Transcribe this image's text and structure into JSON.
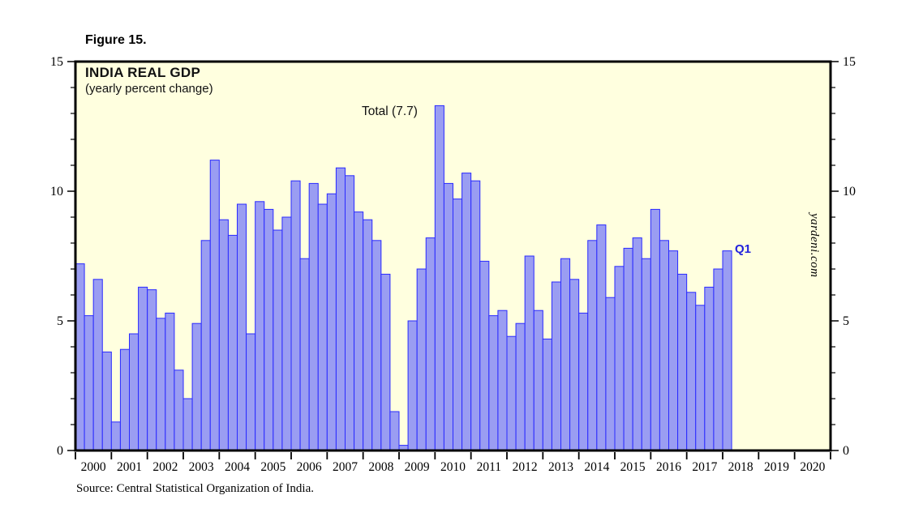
{
  "figure_label": "Figure 15.",
  "source_note": "Source: Central Statistical Organization of India.",
  "chart_data": {
    "type": "bar",
    "title": "INDIA REAL GDP",
    "subtitle": "(yearly percent change)",
    "annotation": "Total (7.7)",
    "last_bar_label": "Q1",
    "watermark": "yardeni.com",
    "ylim": [
      0,
      15
    ],
    "y_major_ticks": [
      0,
      5,
      10,
      15
    ],
    "y_minor_step": 1,
    "axis_years": [
      2000,
      2001,
      2002,
      2003,
      2004,
      2005,
      2006,
      2007,
      2008,
      2009,
      2010,
      2011,
      2012,
      2013,
      2014,
      2015,
      2016,
      2017,
      2018,
      2019,
      2020
    ],
    "quarters": [
      {
        "q": "2000 Q1",
        "v": 7.2
      },
      {
        "q": "2000 Q2",
        "v": 5.2
      },
      {
        "q": "2000 Q3",
        "v": 6.6
      },
      {
        "q": "2000 Q4",
        "v": 3.8
      },
      {
        "q": "2001 Q1",
        "v": 1.1
      },
      {
        "q": "2001 Q2",
        "v": 3.9
      },
      {
        "q": "2001 Q3",
        "v": 4.5
      },
      {
        "q": "2001 Q4",
        "v": 6.3
      },
      {
        "q": "2002 Q1",
        "v": 6.2
      },
      {
        "q": "2002 Q2",
        "v": 5.1
      },
      {
        "q": "2002 Q3",
        "v": 5.3
      },
      {
        "q": "2002 Q4",
        "v": 3.1
      },
      {
        "q": "2003 Q1",
        "v": 2.0
      },
      {
        "q": "2003 Q2",
        "v": 4.9
      },
      {
        "q": "2003 Q3",
        "v": 8.1
      },
      {
        "q": "2003 Q4",
        "v": 11.2
      },
      {
        "q": "2004 Q1",
        "v": 8.9
      },
      {
        "q": "2004 Q2",
        "v": 8.3
      },
      {
        "q": "2004 Q3",
        "v": 9.5
      },
      {
        "q": "2004 Q4",
        "v": 4.5
      },
      {
        "q": "2005 Q1",
        "v": 9.6
      },
      {
        "q": "2005 Q2",
        "v": 9.3
      },
      {
        "q": "2005 Q3",
        "v": 8.5
      },
      {
        "q": "2005 Q4",
        "v": 9.0
      },
      {
        "q": "2006 Q1",
        "v": 10.4
      },
      {
        "q": "2006 Q2",
        "v": 7.4
      },
      {
        "q": "2006 Q3",
        "v": 10.3
      },
      {
        "q": "2006 Q4",
        "v": 9.5
      },
      {
        "q": "2007 Q1",
        "v": 9.9
      },
      {
        "q": "2007 Q2",
        "v": 10.9
      },
      {
        "q": "2007 Q3",
        "v": 10.6
      },
      {
        "q": "2007 Q4",
        "v": 9.2
      },
      {
        "q": "2008 Q1",
        "v": 8.9
      },
      {
        "q": "2008 Q2",
        "v": 8.1
      },
      {
        "q": "2008 Q3",
        "v": 6.8
      },
      {
        "q": "2008 Q4",
        "v": 1.5
      },
      {
        "q": "2009 Q1",
        "v": 0.2
      },
      {
        "q": "2009 Q2",
        "v": 5.0
      },
      {
        "q": "2009 Q3",
        "v": 7.0
      },
      {
        "q": "2009 Q4",
        "v": 8.2
      },
      {
        "q": "2010 Q1",
        "v": 13.3
      },
      {
        "q": "2010 Q2",
        "v": 10.3
      },
      {
        "q": "2010 Q3",
        "v": 9.7
      },
      {
        "q": "2010 Q4",
        "v": 10.7
      },
      {
        "q": "2011 Q1",
        "v": 10.4
      },
      {
        "q": "2011 Q2",
        "v": 7.3
      },
      {
        "q": "2011 Q3",
        "v": 5.2
      },
      {
        "q": "2011 Q4",
        "v": 5.4
      },
      {
        "q": "2012 Q1",
        "v": 4.4
      },
      {
        "q": "2012 Q2",
        "v": 4.9
      },
      {
        "q": "2012 Q3",
        "v": 7.5
      },
      {
        "q": "2012 Q4",
        "v": 5.4
      },
      {
        "q": "2013 Q1",
        "v": 4.3
      },
      {
        "q": "2013 Q2",
        "v": 6.5
      },
      {
        "q": "2013 Q3",
        "v": 7.4
      },
      {
        "q": "2013 Q4",
        "v": 6.6
      },
      {
        "q": "2014 Q1",
        "v": 5.3
      },
      {
        "q": "2014 Q2",
        "v": 8.1
      },
      {
        "q": "2014 Q3",
        "v": 8.7
      },
      {
        "q": "2014 Q4",
        "v": 5.9
      },
      {
        "q": "2015 Q1",
        "v": 7.1
      },
      {
        "q": "2015 Q2",
        "v": 7.8
      },
      {
        "q": "2015 Q3",
        "v": 8.2
      },
      {
        "q": "2015 Q4",
        "v": 7.4
      },
      {
        "q": "2016 Q1",
        "v": 9.3
      },
      {
        "q": "2016 Q2",
        "v": 8.1
      },
      {
        "q": "2016 Q3",
        "v": 7.7
      },
      {
        "q": "2016 Q4",
        "v": 6.8
      },
      {
        "q": "2017 Q1",
        "v": 6.1
      },
      {
        "q": "2017 Q2",
        "v": 5.6
      },
      {
        "q": "2017 Q3",
        "v": 6.3
      },
      {
        "q": "2017 Q4",
        "v": 7.0
      },
      {
        "q": "2018 Q1",
        "v": 7.7
      }
    ],
    "colors": {
      "bar_fill": "#9a9df2",
      "bar_stroke": "#2a2aff",
      "plot_bg": "#ffffdf",
      "frame": "#000000",
      "accent_blue": "#2222dd"
    }
  }
}
